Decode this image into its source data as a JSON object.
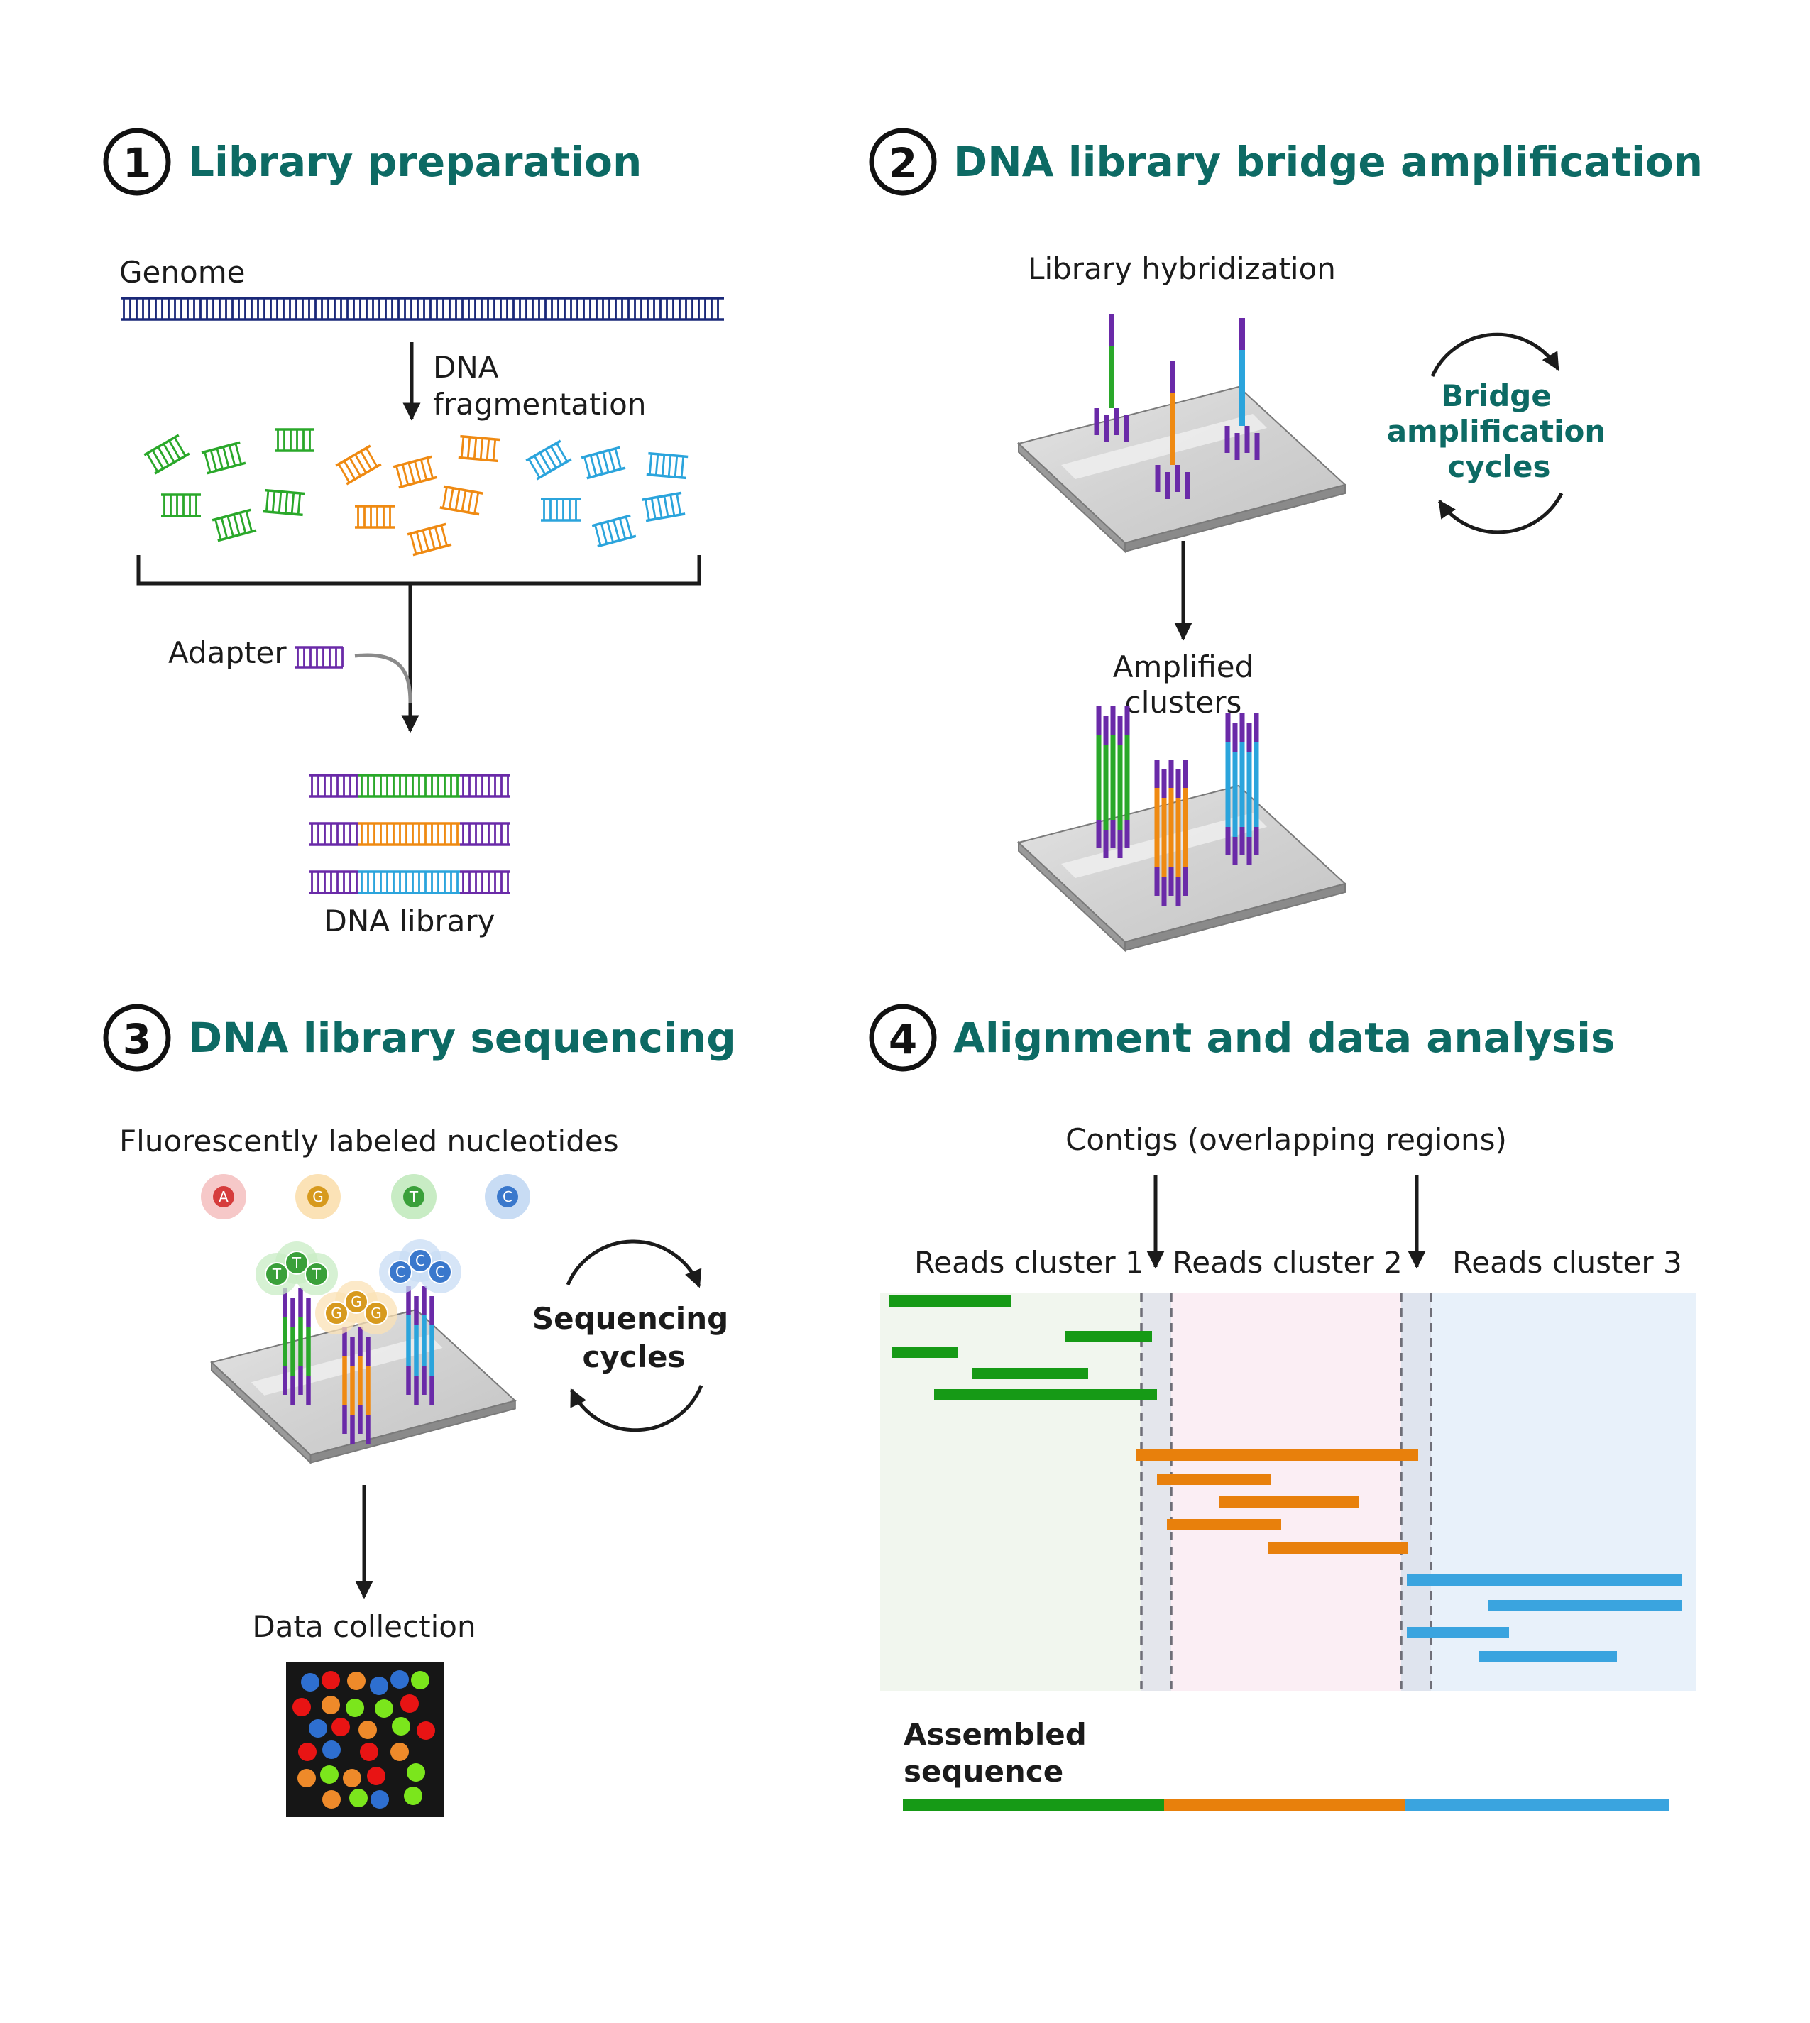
{
  "colors": {
    "title_teal": "#0d6a64",
    "green": "#2aa82a",
    "orange": "#ef8a12",
    "blue": "#2ba4dc",
    "purple": "#6a2aa8",
    "genome_navy": "#1a2878",
    "read_green": "#169a16",
    "read_orange": "#e8800c",
    "read_blue": "#3aa4df",
    "spot_red": "#e81414",
    "spot_green": "#7be61c",
    "spot_blue": "#2e6fd0",
    "spot_orange": "#ee8a2a"
  },
  "panel1": {
    "number": "1",
    "title": "Library preparation",
    "genome_label": "Genome",
    "fragmentation_label_1": "DNA",
    "fragmentation_label_2": "fragmentation",
    "adapter_label": "Adapter",
    "library_label": "DNA library"
  },
  "panel2": {
    "number": "2",
    "title": "DNA library bridge amplification",
    "hybridization_label": "Library hybridization",
    "cycles_label_1": "Bridge",
    "cycles_label_2": "amplification",
    "cycles_label_3": "cycles",
    "amplified_label_1": "Amplified",
    "amplified_label_2": "clusters"
  },
  "panel3": {
    "number": "3",
    "title": "DNA library sequencing",
    "nucleotides_label": "Fluorescently labeled nucleotides",
    "nucleotides": [
      {
        "letter": "A",
        "color": "#d63c3c",
        "halo": "#f6c8c8"
      },
      {
        "letter": "G",
        "color": "#d79a1e",
        "halo": "#fbe2b6"
      },
      {
        "letter": "T",
        "color": "#3aa03a",
        "halo": "#c8ecc4"
      },
      {
        "letter": "C",
        "color": "#3a78cc",
        "halo": "#c8dcf4"
      }
    ],
    "cycles_label_1": "Sequencing",
    "cycles_label_2": "cycles",
    "data_label": "Data collection"
  },
  "panel4": {
    "number": "4",
    "title": "Alignment and data analysis",
    "contigs_label": "Contigs (overlapping regions)",
    "cluster1_label": "Reads cluster 1",
    "cluster2_label": "Reads cluster 2",
    "cluster3_label": "Reads cluster 3",
    "assembled_label_1": "Assembled",
    "assembled_label_2": "sequence"
  }
}
